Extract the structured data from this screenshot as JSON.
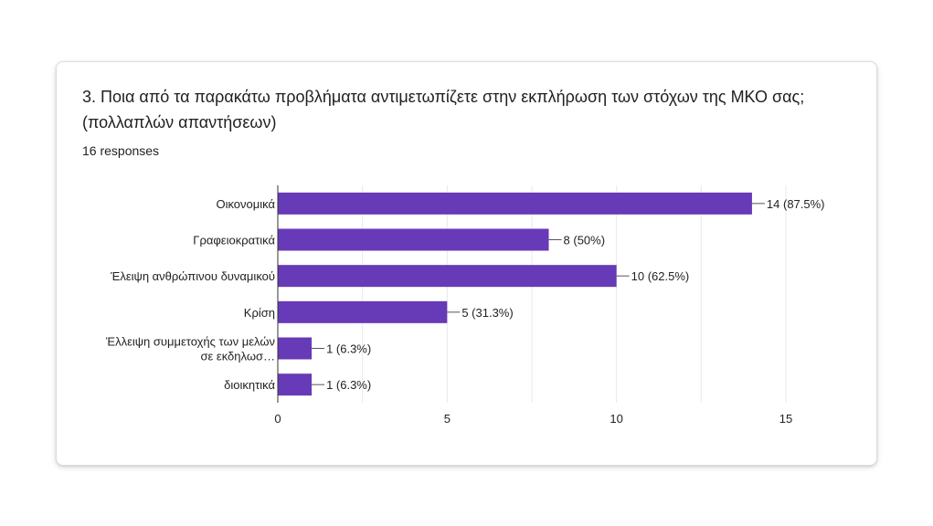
{
  "question": {
    "title": "3. Ποια από τα παρακάτω προβλήματα αντιμετωπίζετε στην εκπλήρωση των στόχων της ΜΚΟ σας; (πολλαπλών απαντήσεων)",
    "responses": "16 responses"
  },
  "chart_data": {
    "type": "bar",
    "orientation": "horizontal",
    "categories": [
      [
        "Οικονομικά"
      ],
      [
        "Γραφειοκρατικά"
      ],
      [
        "Έλειψη ανθρώπινου δυναμικού"
      ],
      [
        "Κρίση"
      ],
      [
        "Έλλειψη συμμετοχής των μελών",
        "σε εκδηλωσ…"
      ],
      [
        "διοικητικά"
      ]
    ],
    "values": [
      14,
      8,
      10,
      5,
      1,
      1
    ],
    "data_labels": [
      "14 (87.5%)",
      "8 (50%)",
      "10 (62.5%)",
      "5 (31.3%)",
      "1 (6.3%)",
      "1 (6.3%)"
    ],
    "xticks": [
      0,
      5,
      10,
      15
    ],
    "xlim": [
      0,
      15
    ],
    "grid": true,
    "colors": {
      "bar": "#673ab7",
      "grid": "#e8e8e8",
      "axis": "#333333",
      "text": "#222222"
    }
  }
}
